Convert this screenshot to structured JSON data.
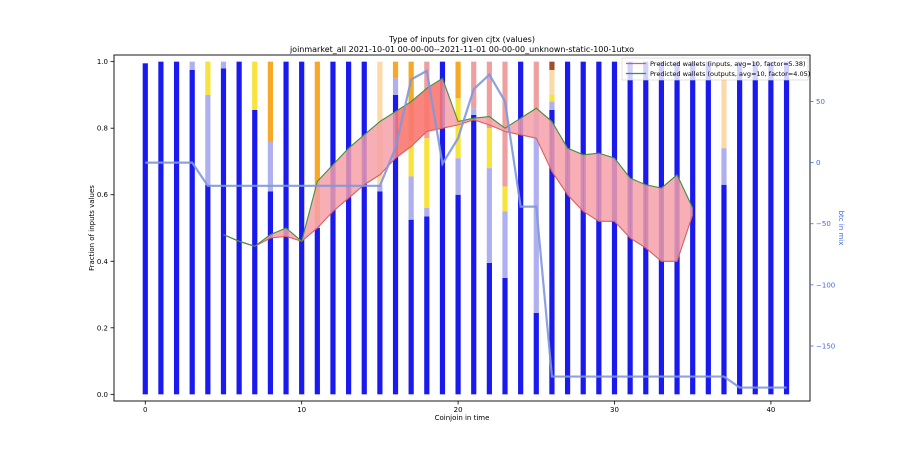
{
  "chart_data": {
    "type": "bar",
    "title": "Type of inputs for given cjtx (values)",
    "subtitle": "joinmarket_all 2021-10-01 00-00-00--2021-11-01 00-00-00_unknown-static-100-1utxo",
    "xlabel": "Coinjoin in time",
    "ylabel": "Fraction of inputs values",
    "y2label": "btc in mix",
    "xlim": [
      -2,
      42.5
    ],
    "ylim": [
      -0.02,
      1.02
    ],
    "y2lim": [
      -195,
      88
    ],
    "xticks": [
      0,
      10,
      20,
      30,
      40
    ],
    "yticks": [
      0.0,
      0.2,
      0.4,
      0.6,
      0.8,
      1.0
    ],
    "y2ticks": [
      50,
      0,
      -50,
      -100,
      -150
    ],
    "ytick_labels": [
      "0.0",
      "0.2",
      "0.4",
      "0.6",
      "0.8",
      "1.0"
    ],
    "y2tick_labels": [
      "50",
      "0",
      "−50",
      "−100",
      "−150"
    ],
    "grid": false,
    "legend_position": "top-right",
    "colors": {
      "fresh": "#1a1aee",
      "remix_light": "#b0b0f0",
      "yellow": "#f8e23c",
      "orange": "#f6a827",
      "pink": "#eea0a0",
      "lightorange": "#fcd9a8",
      "brown": "#a05030",
      "line_mix": "#7f97dc",
      "pred_in": "#d95f5f",
      "pred_in_fill": "#f6a0a8",
      "pred_out": "#3f8f3f",
      "pred_out_fill": "#a8d8ac",
      "axis2": "#4169e1",
      "red_fill": "#ff3a1a"
    },
    "stacks": [
      [
        [
          "fresh",
          0.995
        ]
      ],
      [
        [
          "fresh",
          1.0
        ]
      ],
      [
        [
          "fresh",
          1.0
        ]
      ],
      [
        [
          "fresh",
          0.975
        ],
        [
          "remix_light",
          0.025
        ]
      ],
      [
        [
          "fresh",
          0.63
        ],
        [
          "remix_light",
          0.27
        ],
        [
          "yellow",
          0.1
        ]
      ],
      [
        [
          "fresh",
          0.98
        ],
        [
          "remix_light",
          0.02
        ]
      ],
      [
        [
          "fresh",
          1.0
        ]
      ],
      [
        [
          "fresh",
          0.855
        ],
        [
          "yellow",
          0.145
        ]
      ],
      [
        [
          "fresh",
          0.61
        ],
        [
          "remix_light",
          0.15
        ],
        [
          "orange",
          0.24
        ]
      ],
      [
        [
          "fresh",
          1.0
        ]
      ],
      [
        [
          "fresh",
          1.0
        ]
      ],
      [
        [
          "fresh",
          0.5
        ],
        [
          "remix_light",
          0.02
        ],
        [
          "orange",
          0.48
        ]
      ],
      [
        [
          "fresh",
          1.0
        ]
      ],
      [
        [
          "fresh",
          1.0
        ]
      ],
      [
        [
          "fresh",
          1.0
        ]
      ],
      [
        [
          "fresh",
          0.61
        ],
        [
          "remix_light",
          0.02
        ],
        [
          "lightorange",
          0.37
        ]
      ],
      [
        [
          "fresh",
          0.9
        ],
        [
          "remix_light",
          0.05
        ],
        [
          "orange",
          0.05
        ]
      ],
      [
        [
          "fresh",
          0.525
        ],
        [
          "remix_light",
          0.13
        ],
        [
          "yellow",
          0.105
        ],
        [
          "orange",
          0.24
        ]
      ],
      [
        [
          "fresh",
          0.535
        ],
        [
          "remix_light",
          0.025
        ],
        [
          "yellow",
          0.21
        ],
        [
          "pink",
          0.23
        ]
      ],
      [
        [
          "fresh",
          1.0
        ]
      ],
      [
        [
          "fresh",
          0.6
        ],
        [
          "remix_light",
          0.11
        ],
        [
          "yellow",
          0.18
        ],
        [
          "orange",
          0.11
        ]
      ],
      [
        [
          "fresh",
          0.84
        ],
        [
          "remix_light",
          0.02
        ],
        [
          "pink",
          0.14
        ]
      ],
      [
        [
          "fresh",
          0.395
        ],
        [
          "remix_light",
          0.285
        ],
        [
          "yellow",
          0.12
        ],
        [
          "pink",
          0.2
        ]
      ],
      [
        [
          "fresh",
          0.35
        ],
        [
          "remix_light",
          0.2
        ],
        [
          "yellow",
          0.075
        ],
        [
          "pink",
          0.375
        ]
      ],
      [
        [
          "fresh",
          1.0
        ]
      ],
      [
        [
          "fresh",
          0.245
        ],
        [
          "remix_light",
          0.595
        ],
        [
          "pink",
          0.16
        ]
      ],
      [
        [
          "fresh",
          0.855
        ],
        [
          "remix_light",
          0.025
        ],
        [
          "yellow",
          0.02
        ],
        [
          "lightorange",
          0.075
        ],
        [
          "brown",
          0.025
        ]
      ],
      [
        [
          "fresh",
          1.0
        ]
      ],
      [
        [
          "fresh",
          1.0
        ]
      ],
      [
        [
          "fresh",
          1.0
        ]
      ],
      [
        [
          "fresh",
          1.0
        ]
      ],
      [
        [
          "fresh",
          1.0
        ]
      ],
      [
        [
          "fresh",
          1.0
        ]
      ],
      [
        [
          "fresh",
          1.0
        ]
      ],
      [
        [
          "fresh",
          1.0
        ]
      ],
      [
        [
          "fresh",
          1.0
        ]
      ],
      [
        [
          "fresh",
          1.0
        ]
      ],
      [
        [
          "fresh",
          0.63
        ],
        [
          "remix_light",
          0.11
        ],
        [
          "lightorange",
          0.26
        ]
      ],
      [
        [
          "fresh",
          1.0
        ]
      ],
      [
        [
          "fresh",
          1.0
        ]
      ],
      [
        [
          "fresh",
          1.0
        ]
      ],
      [
        [
          "fresh",
          1.0
        ]
      ]
    ],
    "btc_in_mix": {
      "x": [
        0,
        3,
        4,
        6,
        8,
        10,
        11,
        12,
        13,
        14,
        15,
        16,
        17,
        18,
        19,
        20,
        21,
        22,
        23,
        24,
        25,
        26,
        27,
        28,
        29,
        30,
        31,
        32,
        33,
        34,
        35,
        36,
        37,
        38,
        39,
        40,
        41
      ],
      "y": [
        0,
        0,
        -19,
        -19,
        -19,
        -19,
        -19,
        -19,
        -19,
        -19,
        -19,
        12,
        68,
        75,
        -1,
        20,
        60,
        72,
        50,
        -36,
        -36,
        -175,
        -175,
        -175,
        -175,
        -175,
        -175,
        -175,
        -175,
        -175,
        -175,
        -175,
        -175,
        -184,
        -184,
        -184,
        -184
      ]
    },
    "series": [
      {
        "name": "Predicted wallets (inputs, avg=10, factor=5.38)",
        "x": [
          5,
          6,
          7,
          8,
          9,
          10,
          11,
          12,
          13,
          14,
          15,
          16,
          17,
          18,
          19,
          20,
          21,
          22,
          23,
          24,
          25,
          26,
          27,
          28,
          29,
          30,
          31,
          32,
          33,
          34,
          35
        ],
        "y": [
          0.48,
          0.46,
          0.445,
          0.47,
          0.475,
          0.46,
          0.5,
          0.55,
          0.59,
          0.63,
          0.66,
          0.71,
          0.745,
          0.79,
          0.8,
          0.81,
          0.825,
          0.81,
          0.79,
          0.78,
          0.77,
          0.67,
          0.6,
          0.55,
          0.52,
          0.52,
          0.47,
          0.44,
          0.4,
          0.4,
          0.54
        ]
      },
      {
        "name": "Predicted wallets (outputs, avg=10, factor=4.05)",
        "x": [
          5,
          6,
          7,
          8,
          9,
          10,
          11,
          12,
          13,
          14,
          15,
          16,
          17,
          18,
          19,
          20,
          21,
          22,
          23,
          24,
          25,
          26,
          27,
          28,
          29,
          30,
          31,
          32,
          33,
          34,
          35
        ],
        "y": [
          0.48,
          0.46,
          0.445,
          0.48,
          0.5,
          0.46,
          0.64,
          0.69,
          0.74,
          0.78,
          0.82,
          0.85,
          0.88,
          0.92,
          0.95,
          0.82,
          0.83,
          0.835,
          0.8,
          0.83,
          0.86,
          0.82,
          0.74,
          0.72,
          0.725,
          0.71,
          0.65,
          0.63,
          0.62,
          0.66,
          0.56
        ]
      }
    ]
  }
}
